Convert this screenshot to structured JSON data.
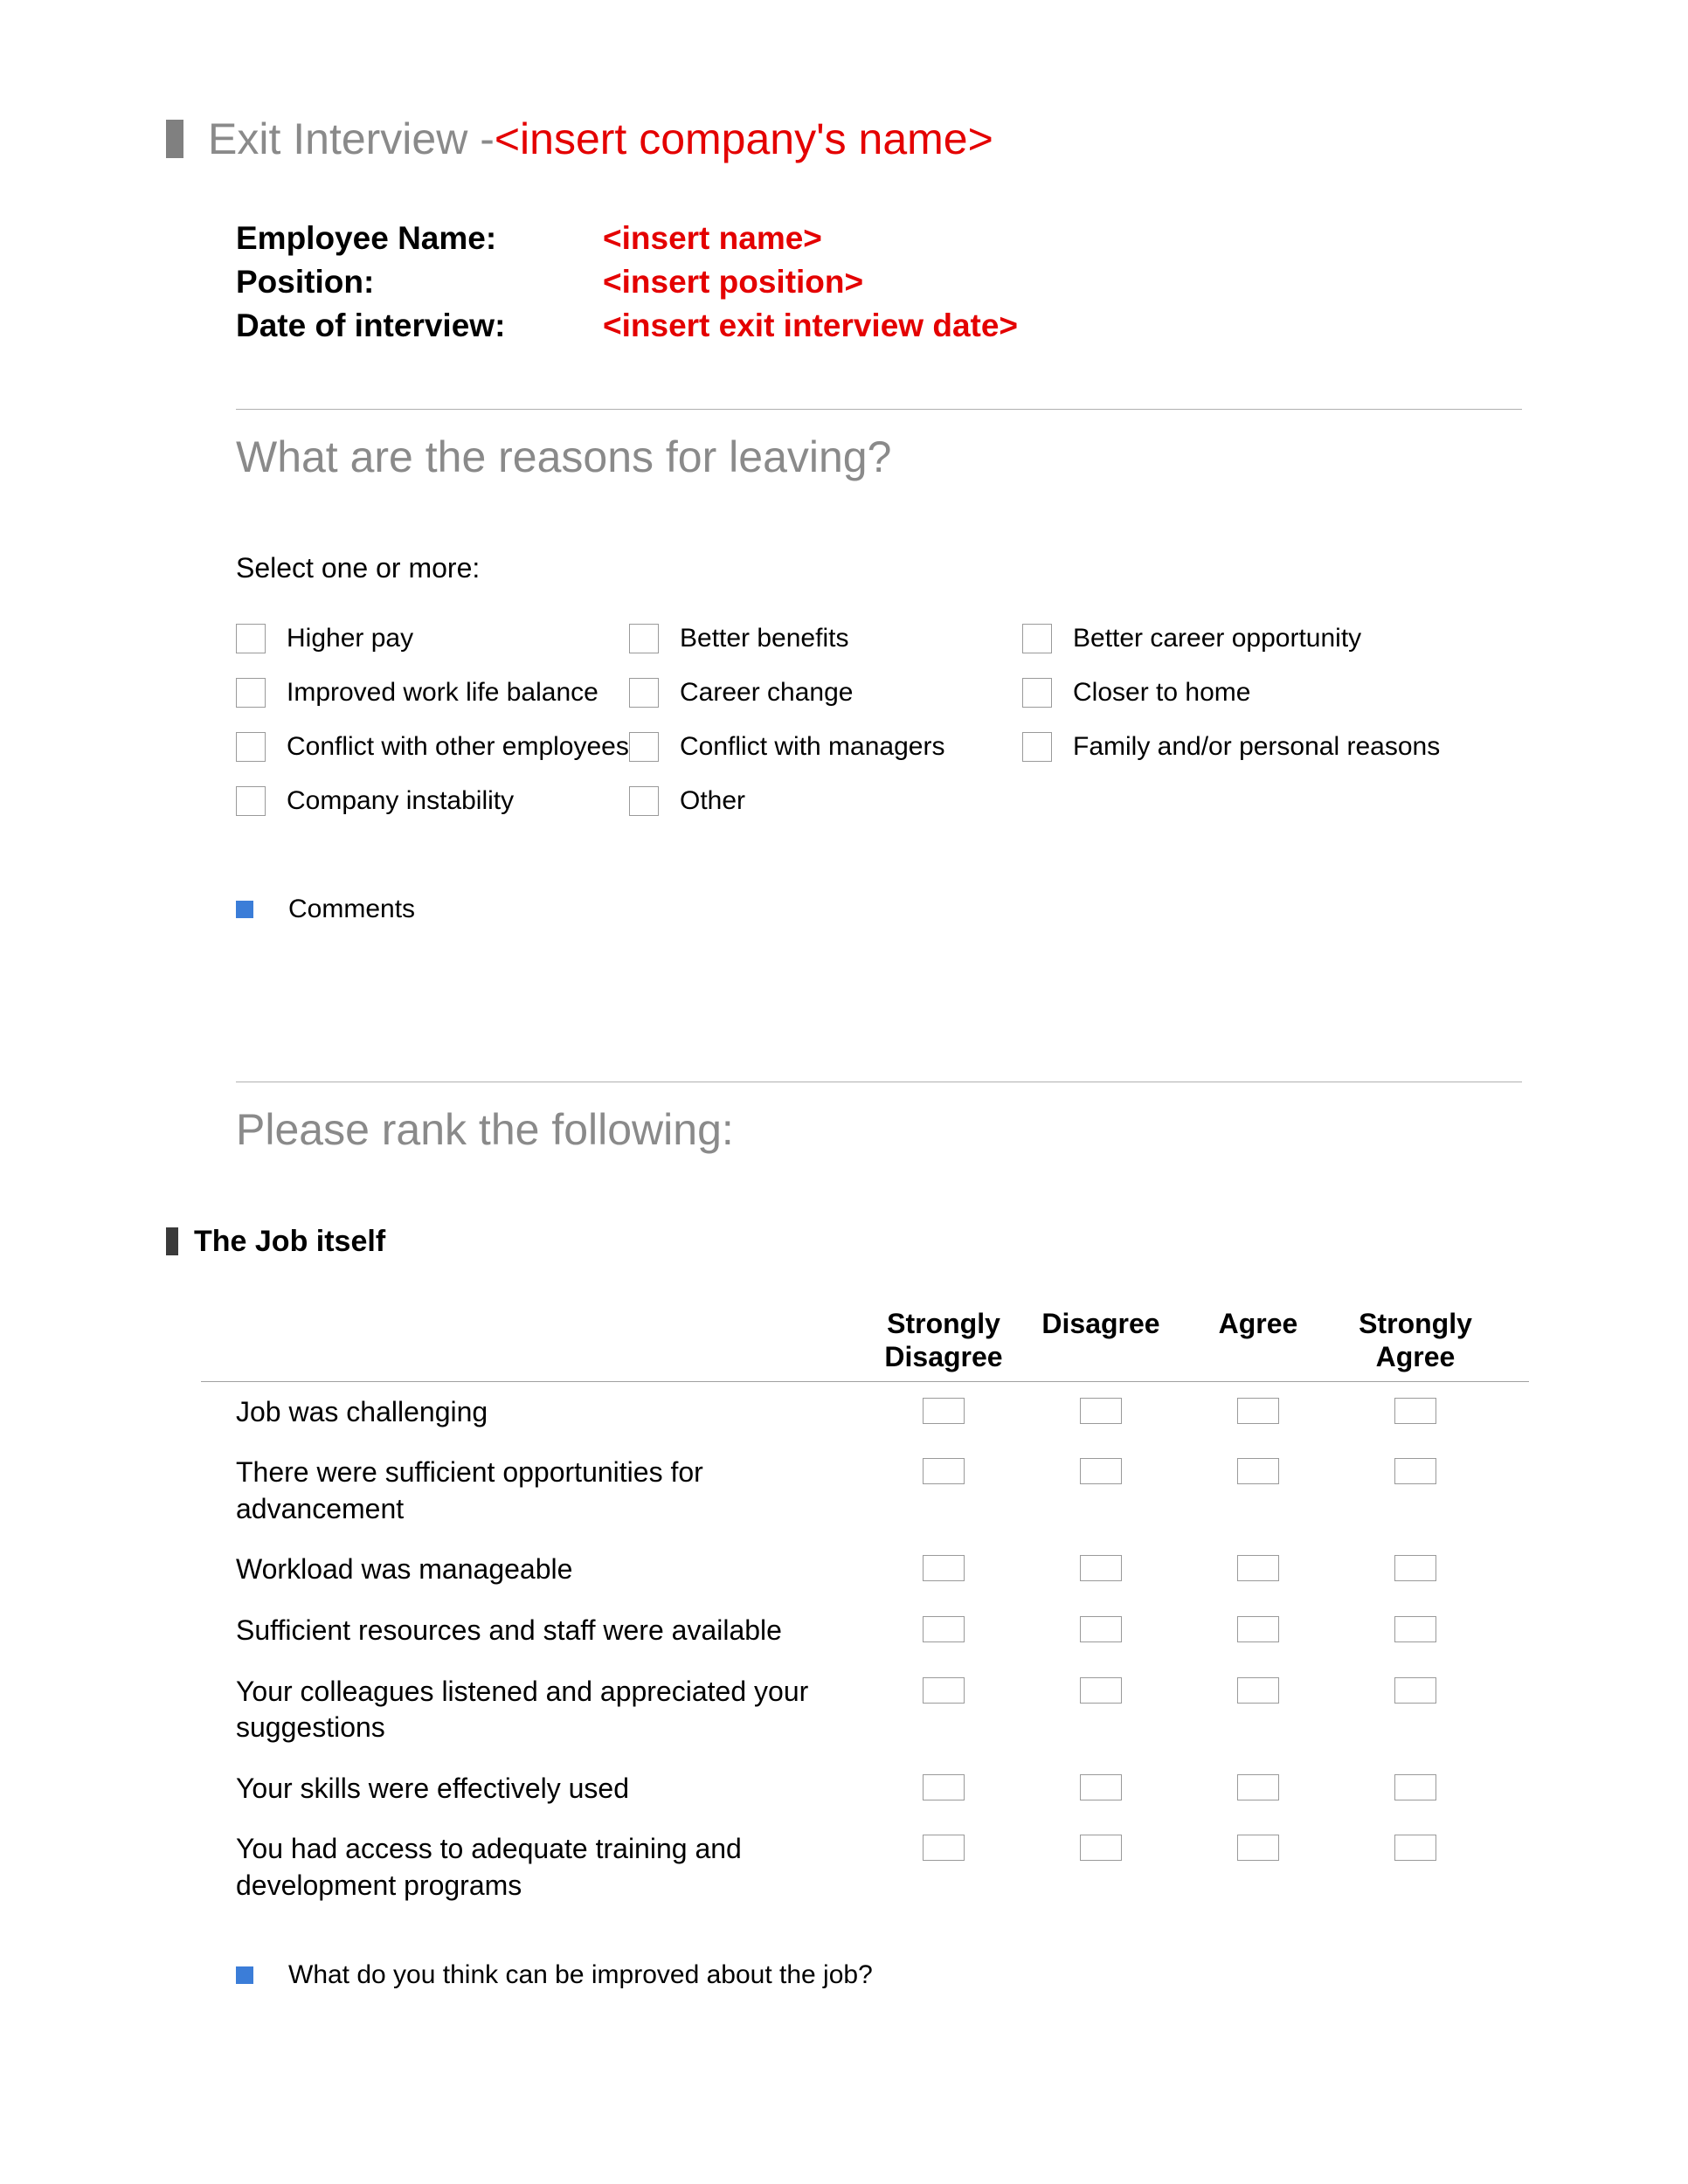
{
  "title": {
    "prefix": "Exit Interview - ",
    "placeholder": "<insert company's name>"
  },
  "info": [
    {
      "label": "Employee Name:",
      "value": "<insert  name>"
    },
    {
      "label": "Position:",
      "value": "<insert position>"
    },
    {
      "label": "Date of interview:",
      "value": "<insert exit interview date>"
    }
  ],
  "section1": {
    "heading": "What are the reasons for leaving?",
    "instruction": "Select one or more:",
    "options": [
      "Higher pay",
      "Better benefits",
      "Better career opportunity",
      "Improved work life balance",
      "Career change",
      "Closer to home",
      "Conflict with other employees",
      "Conflict with managers",
      "Family and/or personal reasons",
      "Company instability",
      "Other"
    ],
    "comments_label": "Comments"
  },
  "section2": {
    "heading": "Please rank the following:",
    "subsection_title": "The Job itself",
    "columns": [
      "Strongly Disagree",
      "Disagree",
      "Agree",
      "Strongly Agree"
    ],
    "statements": [
      "Job was challenging",
      "There were sufficient opportunities for advancement",
      "Workload was manageable",
      "Sufficient resources and staff were available",
      "Your colleagues listened and appreciated your suggestions",
      "Your skills were effectively used",
      "You had access to adequate training and development programs"
    ],
    "improve_prompt": "What do you think can be improved about the job?"
  },
  "colors": {
    "placeholder_red": "#e40000",
    "heading_gray": "#8a8a8a",
    "bullet_gray": "#808080",
    "blue_bullet": "#3b7dd8",
    "checkbox_border": "#9a9a9a"
  }
}
